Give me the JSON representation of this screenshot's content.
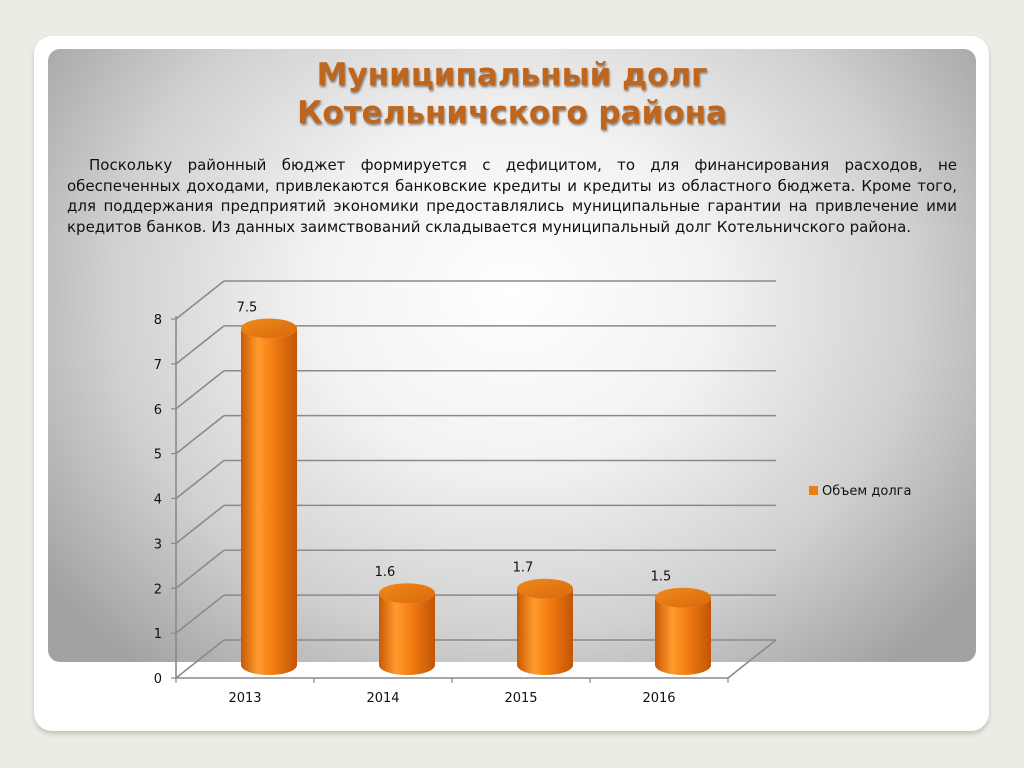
{
  "slide": {
    "title_line1": "Муниципальный долг",
    "title_line2": "Котельничского района",
    "paragraph": "Поскольку районный бюджет формируется с дефицитом, то для финансирования расходов, не обеспеченных доходами, привлекаются банковские кредиты и кредиты из областного бюджета. Кроме того, для поддержания предприятий экономики предоставлялись муниципальные гарантии на привлечение ими кредитов банков. Из данных заимствований складывается муниципальный долг Котельничского района."
  },
  "chart_data": {
    "type": "bar",
    "categories": [
      "2013",
      "2014",
      "2015",
      "2016"
    ],
    "series": [
      {
        "name": "Объем долга",
        "values": [
          7.5,
          1.6,
          1.7,
          1.5
        ],
        "color": "#f07b10"
      }
    ],
    "ylim": [
      0,
      8
    ],
    "yticks": [
      "0",
      "1",
      "2",
      "3",
      "4",
      "5",
      "6",
      "7",
      "8"
    ],
    "data_labels": [
      "7.5",
      "1.6",
      "1.7",
      "1.5"
    ],
    "legend_position": "right",
    "grid": true,
    "style": "3d-cylinder"
  },
  "colors": {
    "title": "#c0661c",
    "bar": "#f07b10",
    "grid": "#8a8a8a"
  }
}
